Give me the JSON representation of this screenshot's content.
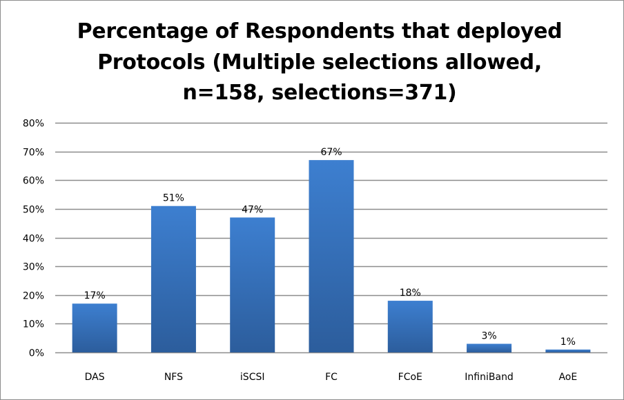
{
  "chart_data": {
    "type": "bar",
    "title_lines": [
      "Percentage of Respondents that deployed",
      "Protocols (Multiple selections allowed,",
      "n=158, selections=371)"
    ],
    "categories": [
      "DAS",
      "NFS",
      "iSCSI",
      "FC",
      "FCoE",
      "InfiniBand",
      "AoE"
    ],
    "values": [
      17,
      51,
      47,
      67,
      18,
      3,
      1
    ],
    "data_labels": [
      "17%",
      "51%",
      "47%",
      "67%",
      "18%",
      "3%",
      "1%"
    ],
    "xlabel": "",
    "ylabel": "",
    "ylim": [
      0,
      80
    ],
    "yticks": [
      0,
      10,
      20,
      30,
      40,
      50,
      60,
      70,
      80
    ],
    "ytick_labels": [
      "0%",
      "10%",
      "20%",
      "30%",
      "40%",
      "50%",
      "60%",
      "70%",
      "80%"
    ],
    "grid": true,
    "legend": "none",
    "colors": {
      "bar_top": "#3d7fd0",
      "bar_bottom": "#2c5d9c",
      "grid": "#8c8c8c"
    }
  }
}
